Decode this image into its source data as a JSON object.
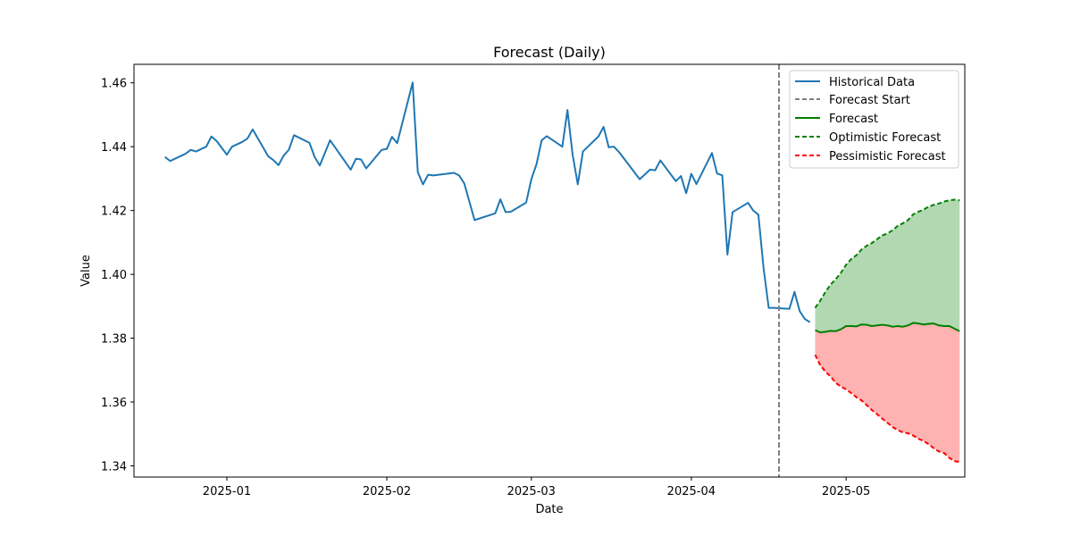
{
  "chart_data": {
    "type": "line",
    "title": "Forecast (Daily)",
    "xlabel": "Date",
    "ylabel": "Value",
    "x_range": [
      "2024-12-14",
      "2025-05-24"
    ],
    "ylim": [
      1.3365,
      1.4658
    ],
    "xticks": [
      "2025-01-01",
      "2025-02-01",
      "2025-03-01",
      "2025-04-01",
      "2025-05-01"
    ],
    "xtick_labels": [
      "2025-01",
      "2025-02",
      "2025-03",
      "2025-04",
      "2025-05"
    ],
    "yticks": [
      1.34,
      1.36,
      1.38,
      1.4,
      1.42,
      1.44,
      1.46
    ],
    "ytick_labels": [
      "1.34",
      "1.36",
      "1.38",
      "1.40",
      "1.42",
      "1.44",
      "1.46"
    ],
    "grid": false,
    "legend_position": "top-right",
    "legend": [
      "Historical Data",
      "Forecast Start",
      "Forecast",
      "Optimistic Forecast",
      "Pessimistic Forecast"
    ],
    "colors": {
      "historical": "#1f77b4",
      "forecast_start": "#808080",
      "forecast": "#008000",
      "optimistic": "#008000",
      "pessimistic": "#ff0000",
      "optimistic_fill": "#b2d8b2",
      "pessimistic_fill": "#ffb2b2"
    },
    "forecast_start": "2025-04-18",
    "historical": [
      [
        "2024-12-20",
        1.4368
      ],
      [
        "2024-12-21",
        1.4355
      ],
      [
        "2024-12-24",
        1.4378
      ],
      [
        "2024-12-25",
        1.439
      ],
      [
        "2024-12-26",
        1.4385
      ],
      [
        "2024-12-28",
        1.44
      ],
      [
        "2024-12-29",
        1.4432
      ],
      [
        "2024-12-30",
        1.4418
      ],
      [
        "2025-01-01",
        1.4375
      ],
      [
        "2025-01-02",
        1.44
      ],
      [
        "2025-01-04",
        1.4415
      ],
      [
        "2025-01-05",
        1.4426
      ],
      [
        "2025-01-06",
        1.4454
      ],
      [
        "2025-01-09",
        1.437
      ],
      [
        "2025-01-10",
        1.4358
      ],
      [
        "2025-01-11",
        1.4342
      ],
      [
        "2025-01-12",
        1.4372
      ],
      [
        "2025-01-13",
        1.439
      ],
      [
        "2025-01-14",
        1.4436
      ],
      [
        "2025-01-17",
        1.4412
      ],
      [
        "2025-01-18",
        1.4368
      ],
      [
        "2025-01-19",
        1.4341
      ],
      [
        "2025-01-21",
        1.442
      ],
      [
        "2025-01-25",
        1.4328
      ],
      [
        "2025-01-26",
        1.4362
      ],
      [
        "2025-01-27",
        1.436
      ],
      [
        "2025-01-28",
        1.4332
      ],
      [
        "2025-01-31",
        1.439
      ],
      [
        "2025-02-01",
        1.4393
      ],
      [
        "2025-02-02",
        1.4431
      ],
      [
        "2025-02-03",
        1.4411
      ],
      [
        "2025-02-06",
        1.4601
      ],
      [
        "2025-02-07",
        1.432
      ],
      [
        "2025-02-08",
        1.4282
      ],
      [
        "2025-02-09",
        1.4312
      ],
      [
        "2025-02-10",
        1.431
      ],
      [
        "2025-02-14",
        1.4318
      ],
      [
        "2025-02-15",
        1.431
      ],
      [
        "2025-02-16",
        1.4285
      ],
      [
        "2025-02-18",
        1.417
      ],
      [
        "2025-02-22",
        1.4191
      ],
      [
        "2025-02-23",
        1.4235
      ],
      [
        "2025-02-24",
        1.4195
      ],
      [
        "2025-02-25",
        1.4196
      ],
      [
        "2025-02-28",
        1.4225
      ],
      [
        "2025-03-01",
        1.4298
      ],
      [
        "2025-03-02",
        1.4345
      ],
      [
        "2025-03-03",
        1.442
      ],
      [
        "2025-03-04",
        1.4433
      ],
      [
        "2025-03-07",
        1.44
      ],
      [
        "2025-03-08",
        1.4515
      ],
      [
        "2025-03-09",
        1.4375
      ],
      [
        "2025-03-10",
        1.4282
      ],
      [
        "2025-03-11",
        1.4385
      ],
      [
        "2025-03-14",
        1.4432
      ],
      [
        "2025-03-15",
        1.4462
      ],
      [
        "2025-03-16",
        1.4398
      ],
      [
        "2025-03-17",
        1.44
      ],
      [
        "2025-03-18",
        1.4383
      ],
      [
        "2025-03-22",
        1.4298
      ],
      [
        "2025-03-24",
        1.4328
      ],
      [
        "2025-03-25",
        1.4326
      ],
      [
        "2025-03-26",
        1.4357
      ],
      [
        "2025-03-29",
        1.4292
      ],
      [
        "2025-03-30",
        1.4308
      ],
      [
        "2025-03-31",
        1.4254
      ],
      [
        "2025-04-01",
        1.4315
      ],
      [
        "2025-04-02",
        1.4283
      ],
      [
        "2025-04-05",
        1.438
      ],
      [
        "2025-04-06",
        1.4316
      ],
      [
        "2025-04-07",
        1.431
      ],
      [
        "2025-04-08",
        1.4062
      ],
      [
        "2025-04-09",
        1.4195
      ],
      [
        "2025-04-12",
        1.4224
      ],
      [
        "2025-04-13",
        1.42
      ],
      [
        "2025-04-14",
        1.4187
      ],
      [
        "2025-04-15",
        1.402
      ],
      [
        "2025-04-16",
        1.3895
      ],
      [
        "2025-04-17",
        1.3895
      ],
      [
        "2025-04-20",
        1.3892
      ],
      [
        "2025-04-21",
        1.3945
      ],
      [
        "2025-04-22",
        1.3885
      ],
      [
        "2025-04-23",
        1.386
      ],
      [
        "2025-04-24",
        1.385
      ]
    ],
    "forecast": [
      [
        "2025-04-25",
        1.3825
      ],
      [
        "2025-04-26",
        1.3818
      ],
      [
        "2025-04-27",
        1.382
      ],
      [
        "2025-04-28",
        1.3823
      ],
      [
        "2025-04-29",
        1.3822
      ],
      [
        "2025-04-30",
        1.3828
      ],
      [
        "2025-05-01",
        1.3838
      ],
      [
        "2025-05-02",
        1.3838
      ],
      [
        "2025-05-03",
        1.3837
      ],
      [
        "2025-05-04",
        1.3843
      ],
      [
        "2025-05-05",
        1.3842
      ],
      [
        "2025-05-06",
        1.3838
      ],
      [
        "2025-05-07",
        1.384
      ],
      [
        "2025-05-08",
        1.3842
      ],
      [
        "2025-05-09",
        1.384
      ],
      [
        "2025-05-10",
        1.3836
      ],
      [
        "2025-05-11",
        1.3838
      ],
      [
        "2025-05-12",
        1.3836
      ],
      [
        "2025-05-13",
        1.384
      ],
      [
        "2025-05-14",
        1.3848
      ],
      [
        "2025-05-15",
        1.3846
      ],
      [
        "2025-05-16",
        1.3843
      ],
      [
        "2025-05-17",
        1.3845
      ],
      [
        "2025-05-18",
        1.3846
      ],
      [
        "2025-05-19",
        1.384
      ],
      [
        "2025-05-20",
        1.3838
      ],
      [
        "2025-05-21",
        1.3838
      ],
      [
        "2025-05-22",
        1.383
      ],
      [
        "2025-05-23",
        1.3822
      ]
    ],
    "optimistic": [
      [
        "2025-04-25",
        1.3895
      ],
      [
        "2025-04-26",
        1.3918
      ],
      [
        "2025-04-27",
        1.3945
      ],
      [
        "2025-04-28",
        1.3968
      ],
      [
        "2025-04-29",
        1.3985
      ],
      [
        "2025-04-30",
        1.4005
      ],
      [
        "2025-05-01",
        1.403
      ],
      [
        "2025-05-02",
        1.4048
      ],
      [
        "2025-05-03",
        1.406
      ],
      [
        "2025-05-04",
        1.4078
      ],
      [
        "2025-05-05",
        1.409
      ],
      [
        "2025-05-06",
        1.4098
      ],
      [
        "2025-05-07",
        1.411
      ],
      [
        "2025-05-08",
        1.4122
      ],
      [
        "2025-05-09",
        1.4128
      ],
      [
        "2025-05-10",
        1.4138
      ],
      [
        "2025-05-11",
        1.4152
      ],
      [
        "2025-05-12",
        1.416
      ],
      [
        "2025-05-13",
        1.417
      ],
      [
        "2025-05-14",
        1.4188
      ],
      [
        "2025-05-15",
        1.4196
      ],
      [
        "2025-05-16",
        1.4203
      ],
      [
        "2025-05-17",
        1.4212
      ],
      [
        "2025-05-18",
        1.4218
      ],
      [
        "2025-05-19",
        1.4222
      ],
      [
        "2025-05-20",
        1.4228
      ],
      [
        "2025-05-21",
        1.4232
      ],
      [
        "2025-05-22",
        1.4234
      ],
      [
        "2025-05-23",
        1.4232
      ]
    ],
    "pessimistic": [
      [
        "2025-04-25",
        1.3748
      ],
      [
        "2025-04-26",
        1.3715
      ],
      [
        "2025-04-27",
        1.3695
      ],
      [
        "2025-04-28",
        1.368
      ],
      [
        "2025-04-29",
        1.366
      ],
      [
        "2025-04-30",
        1.3648
      ],
      [
        "2025-05-01",
        1.364
      ],
      [
        "2025-05-02",
        1.3628
      ],
      [
        "2025-05-03",
        1.3615
      ],
      [
        "2025-05-04",
        1.3605
      ],
      [
        "2025-05-05",
        1.359
      ],
      [
        "2025-05-06",
        1.3575
      ],
      [
        "2025-05-07",
        1.3562
      ],
      [
        "2025-05-08",
        1.3548
      ],
      [
        "2025-05-09",
        1.3535
      ],
      [
        "2025-05-10",
        1.3522
      ],
      [
        "2025-05-11",
        1.3512
      ],
      [
        "2025-05-12",
        1.3505
      ],
      [
        "2025-05-13",
        1.3502
      ],
      [
        "2025-05-14",
        1.3495
      ],
      [
        "2025-05-15",
        1.3485
      ],
      [
        "2025-05-16",
        1.3478
      ],
      [
        "2025-05-17",
        1.3468
      ],
      [
        "2025-05-18",
        1.3455
      ],
      [
        "2025-05-19",
        1.3445
      ],
      [
        "2025-05-20",
        1.344
      ],
      [
        "2025-05-21",
        1.3425
      ],
      [
        "2025-05-22",
        1.3415
      ],
      [
        "2025-05-23",
        1.3412
      ]
    ]
  }
}
